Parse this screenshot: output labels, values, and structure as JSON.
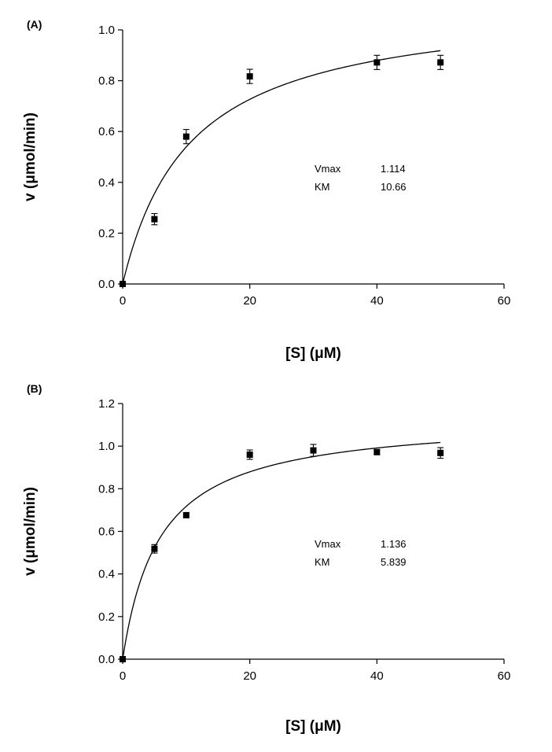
{
  "chart_data": [
    {
      "type": "scatter",
      "panel_label": "(A)",
      "xlabel": "[S] (μM)",
      "ylabel": "v (μmol/min)",
      "xlim": [
        0,
        60
      ],
      "ylim": [
        0,
        1.0
      ],
      "xticks": [
        0,
        20,
        40,
        60
      ],
      "yticks": [
        0.0,
        0.2,
        0.4,
        0.6,
        0.8,
        1.0
      ],
      "ytick_labels": [
        "0.0",
        "0.2",
        "0.4",
        "0.6",
        "0.8",
        "1.0"
      ],
      "xtick_labels": [
        "0",
        "20",
        "40",
        "60"
      ],
      "x": [
        0,
        5,
        10,
        20,
        40,
        50
      ],
      "y": [
        0.0,
        0.255,
        0.58,
        0.817,
        0.872,
        0.872
      ],
      "err": [
        0.0,
        0.022,
        0.028,
        0.028,
        0.028,
        0.028
      ],
      "fit": {
        "model": "michaelis-menten",
        "vmax": 1.114,
        "km": 10.66
      },
      "params": [
        {
          "name": "Vmax",
          "value": "1.114"
        },
        {
          "name": "KM",
          "value": "10.66"
        }
      ]
    },
    {
      "type": "scatter",
      "panel_label": "(B)",
      "xlabel": "[S] (μM)",
      "ylabel": "v (μmol/min)",
      "xlim": [
        0,
        60
      ],
      "ylim": [
        0,
        1.2
      ],
      "xticks": [
        0,
        20,
        40,
        60
      ],
      "yticks": [
        0.0,
        0.2,
        0.4,
        0.6,
        0.8,
        1.0,
        1.2
      ],
      "ytick_labels": [
        "0.0",
        "0.2",
        "0.4",
        "0.6",
        "0.8",
        "1.0",
        "1.2"
      ],
      "xtick_labels": [
        "0",
        "20",
        "40",
        "60"
      ],
      "x": [
        0,
        5,
        10,
        20,
        30,
        40,
        50
      ],
      "y": [
        0.0,
        0.518,
        0.676,
        0.96,
        0.98,
        0.972,
        0.968
      ],
      "err": [
        0.0,
        0.02,
        0.0,
        0.022,
        0.028,
        0.012,
        0.025
      ],
      "fit": {
        "model": "michaelis-menten",
        "vmax": 1.136,
        "km": 5.839
      },
      "params": [
        {
          "name": "Vmax",
          "value": "1.136"
        },
        {
          "name": "KM",
          "value": "5.839"
        }
      ]
    }
  ]
}
